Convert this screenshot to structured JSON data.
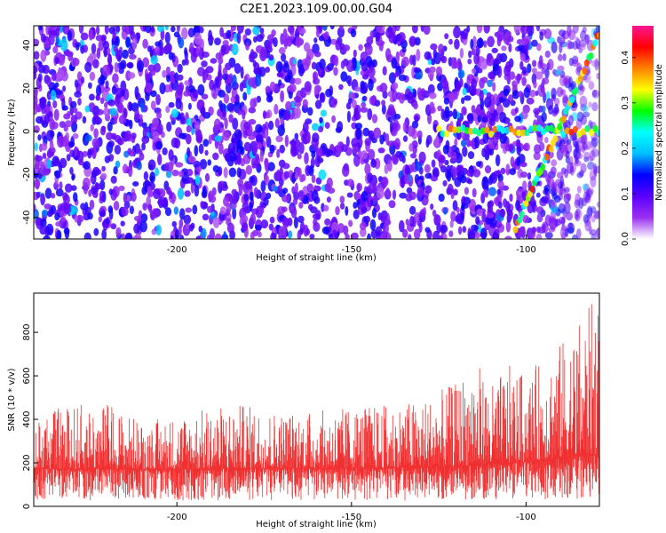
{
  "figure": {
    "title": "C2E1.2023.109.00.00.G04"
  },
  "chart_data": [
    {
      "type": "heatmap",
      "xlabel": "Height of straight line (km)",
      "ylabel": "Frequency (Hz)",
      "xlim": [
        -241,
        -79
      ],
      "ylim": [
        -50,
        49
      ],
      "xticks": [
        -200,
        -150,
        -100
      ],
      "yticks": [
        -40,
        -20,
        0,
        20,
        40
      ],
      "colorbar": {
        "label": "Normalized spectral amplitude",
        "range": [
          0,
          0.47
        ],
        "ticks": [
          0.0,
          0.1,
          0.2,
          0.3,
          0.4
        ],
        "colormap": [
          "#ffffff",
          "#9b2ff0",
          "#5a00ff",
          "#0000ff",
          "#00bfff",
          "#00ffff",
          "#00ff00",
          "#ffff00",
          "#ff8000",
          "#ff0000",
          "#ff1493"
        ]
      },
      "features": [
        {
          "from": [
            -125,
            0
          ],
          "to": [
            -79,
            0
          ],
          "note": "horizontal band near 0 Hz"
        },
        {
          "from": [
            -103,
            -45
          ],
          "to": [
            -79,
            45
          ],
          "note": "diagonal rising feature"
        }
      ],
      "grid": false
    },
    {
      "type": "line",
      "xlabel": "Height of straight line (km)",
      "ylabel": "SNR (10 * v/v)",
      "xlim": [
        -241,
        -79
      ],
      "ylim": [
        0,
        980
      ],
      "xticks": [
        -200,
        -150,
        -100
      ],
      "yticks": [
        0,
        200,
        400,
        600,
        800
      ],
      "color": "#f03030",
      "series": [
        {
          "x": [
            -241,
            -230,
            -220,
            -210,
            -200,
            -190,
            -180,
            -170,
            -160,
            -150,
            -140,
            -130,
            -120,
            -115,
            -110,
            -105,
            -100,
            -95,
            -90,
            -85,
            -80
          ],
          "baseline": [
            175,
            170,
            175,
            172,
            170,
            172,
            175,
            175,
            175,
            175,
            178,
            180,
            185,
            190,
            195,
            200,
            205,
            215,
            225,
            235,
            240
          ],
          "peak": [
            420,
            470,
            480,
            390,
            420,
            460,
            470,
            440,
            440,
            460,
            470,
            490,
            570,
            690,
            560,
            650,
            600,
            690,
            760,
            850,
            975
          ]
        }
      ],
      "grid": false
    }
  ]
}
